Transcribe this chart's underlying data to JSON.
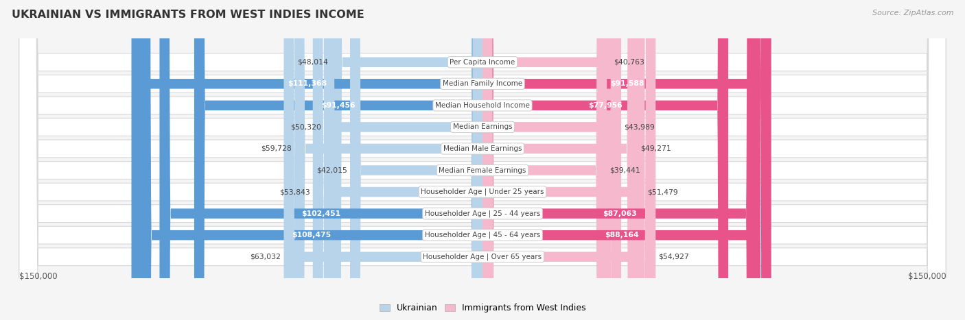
{
  "title": "UKRAINIAN VS IMMIGRANTS FROM WEST INDIES INCOME",
  "source": "Source: ZipAtlas.com",
  "categories": [
    "Per Capita Income",
    "Median Family Income",
    "Median Household Income",
    "Median Earnings",
    "Median Male Earnings",
    "Median Female Earnings",
    "Householder Age | Under 25 years",
    "Householder Age | 25 - 44 years",
    "Householder Age | 45 - 64 years",
    "Householder Age | Over 65 years"
  ],
  "ukrainian_values": [
    48014,
    111368,
    91456,
    50320,
    59728,
    42015,
    53843,
    102451,
    108475,
    63032
  ],
  "westindies_values": [
    40763,
    91588,
    77956,
    43989,
    49271,
    39441,
    51479,
    87063,
    88164,
    54927
  ],
  "ukrainian_labels": [
    "$48,014",
    "$111,368",
    "$91,456",
    "$50,320",
    "$59,728",
    "$42,015",
    "$53,843",
    "$102,451",
    "$108,475",
    "$63,032"
  ],
  "westindies_labels": [
    "$40,763",
    "$91,588",
    "$77,956",
    "$43,989",
    "$49,271",
    "$39,441",
    "$51,479",
    "$87,063",
    "$88,164",
    "$54,927"
  ],
  "max_value": 150000,
  "ukrainian_light": "#b8d4ea",
  "ukrainian_dark": "#5b9bd5",
  "westindies_light": "#f5b8cc",
  "westindies_dark": "#e8538a",
  "label_threshold": 75000,
  "bg_color": "#f5f5f5",
  "row_fill": "#ffffff",
  "row_border": "#d8d8d8",
  "title_color": "#333333",
  "source_color": "#999999",
  "axis_label_color": "#555555",
  "text_dark": "#444444",
  "text_white": "#ffffff"
}
